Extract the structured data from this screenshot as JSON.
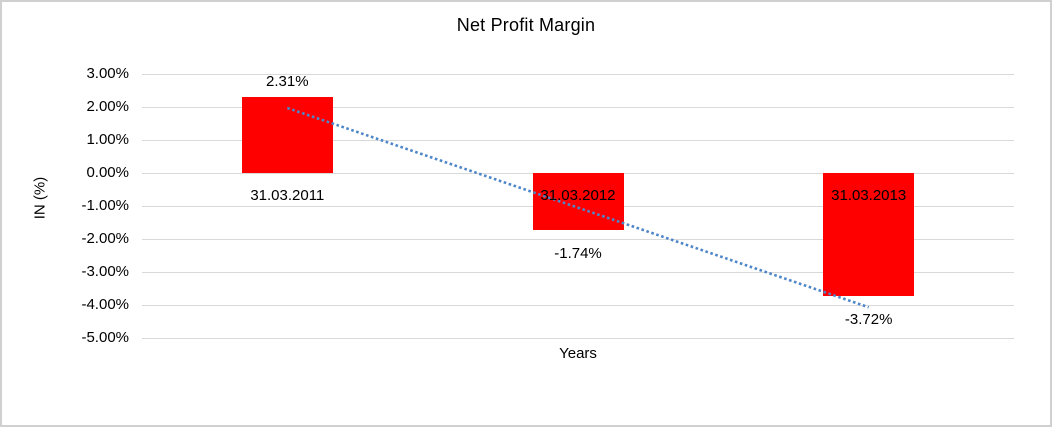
{
  "chart_data": {
    "type": "bar",
    "title": "Net Profit Margin",
    "xlabel": "Years",
    "ylabel": "IN (%)",
    "categories": [
      "31.03.2011",
      "31.03.2012",
      "31.03.2013"
    ],
    "values": [
      2.31,
      -1.74,
      -3.72
    ],
    "data_labels": [
      "2.31%",
      "-1.74%",
      "-3.72%"
    ],
    "ylim": [
      -5,
      3
    ],
    "ytick_step": 1,
    "ytick_labels": [
      "3.00%",
      "2.00%",
      "1.00%",
      "0.00%",
      "-1.00%",
      "-2.00%",
      "-3.00%",
      "-4.00%",
      "-5.00%"
    ],
    "grid": true,
    "legend_position": "none",
    "bar_color": "#ff0000",
    "gridline_color": "#d9d9d9",
    "trendline": {
      "type": "linear",
      "style": "dotted",
      "color": "#4e86c8",
      "start_value": 1.97,
      "end_value": -4.07
    }
  }
}
